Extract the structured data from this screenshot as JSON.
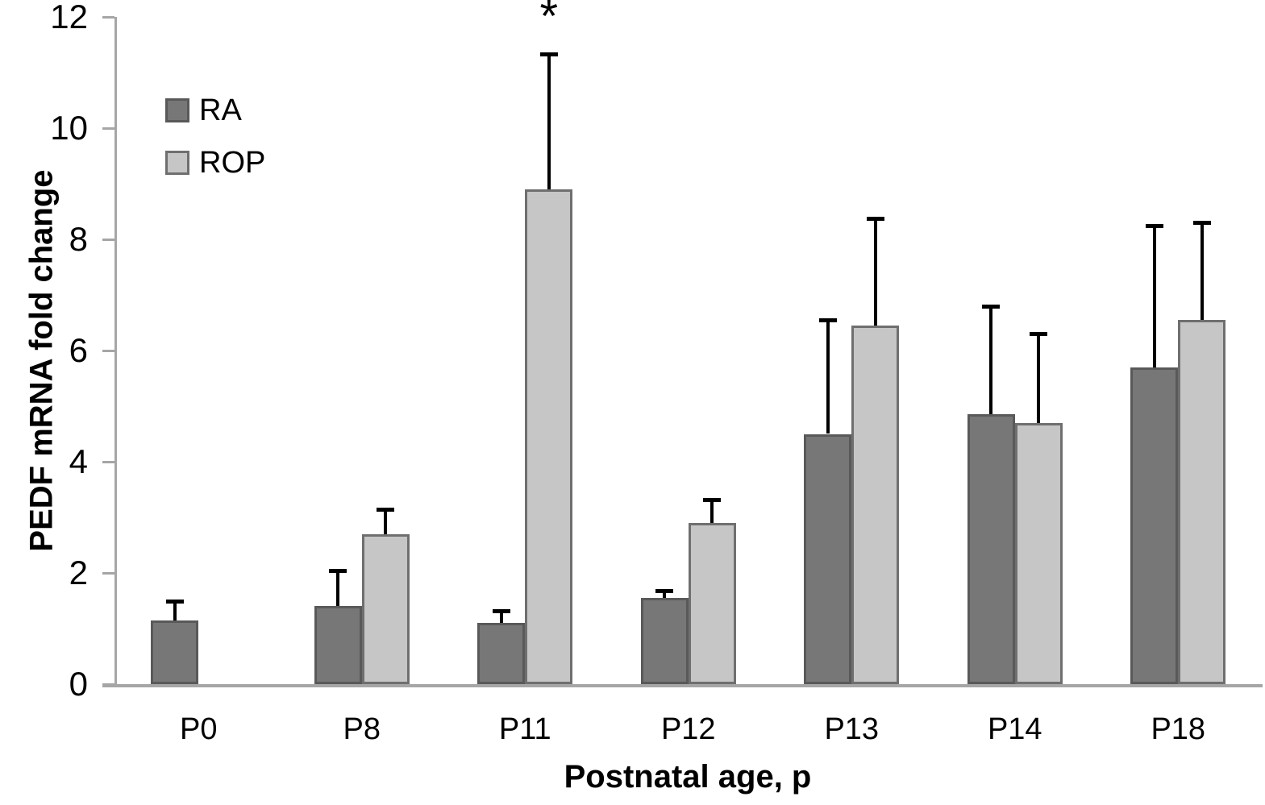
{
  "chart_data": {
    "type": "bar",
    "title": "",
    "xlabel": "Postnatal age, p",
    "ylabel": "PEDF mRNA fold change",
    "categories": [
      "P0",
      "P8",
      "P11",
      "P12",
      "P13",
      "P14",
      "P18"
    ],
    "series": [
      {
        "name": "RA",
        "fill_color": "#777777",
        "border_color": "#595959",
        "values": [
          1.15,
          1.4,
          1.1,
          1.55,
          4.5,
          4.85,
          5.7
        ],
        "errors_up": [
          0.35,
          0.65,
          0.22,
          0.13,
          2.05,
          1.95,
          2.55
        ]
      },
      {
        "name": "ROP",
        "fill_color": "#c6c6c6",
        "border_color": "#6f6f6f",
        "values": [
          null,
          2.7,
          8.9,
          2.9,
          6.45,
          4.7,
          6.55
        ],
        "errors_up": [
          null,
          0.45,
          2.43,
          0.42,
          1.93,
          1.6,
          1.75
        ]
      }
    ],
    "ylim": [
      0,
      12
    ],
    "yticks": [
      0,
      2,
      4,
      6,
      8,
      10,
      12
    ],
    "grid": false,
    "legend_position": "upper-left-inside",
    "annotations": [
      {
        "text": "*",
        "category": "P11",
        "series": "ROP"
      }
    ],
    "axis_color": "#a6a6a6",
    "error_bar_color": "#000000"
  }
}
